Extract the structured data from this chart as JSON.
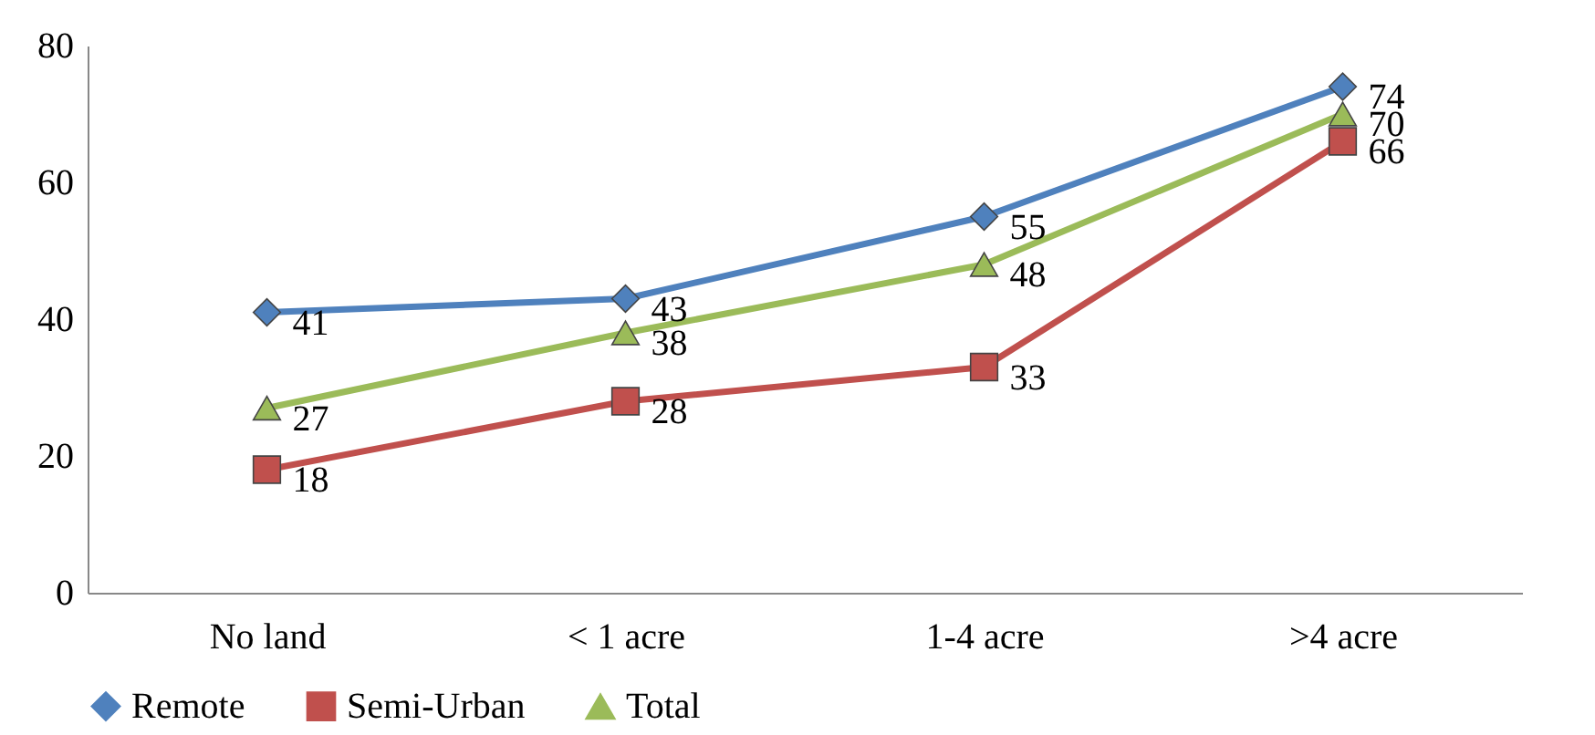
{
  "chart_data": {
    "type": "line",
    "categories": [
      "No land",
      "< 1 acre",
      "1-4 acre",
      ">4 acre"
    ],
    "series": [
      {
        "name": "Remote",
        "color": "#4f81bd",
        "marker": "diamond",
        "values": [
          41,
          43,
          55,
          74
        ]
      },
      {
        "name": "Semi-Urban",
        "color": "#c0504d",
        "marker": "square",
        "values": [
          18,
          28,
          33,
          66
        ]
      },
      {
        "name": "Total",
        "color": "#9bbb59",
        "marker": "triangle",
        "values": [
          27,
          38,
          48,
          70
        ]
      }
    ],
    "ylim": [
      0,
      80
    ],
    "yticks": [
      0,
      20,
      40,
      60,
      80
    ],
    "data_labels": true,
    "legend": "bottom",
    "grid": false,
    "line_style": "solid"
  }
}
